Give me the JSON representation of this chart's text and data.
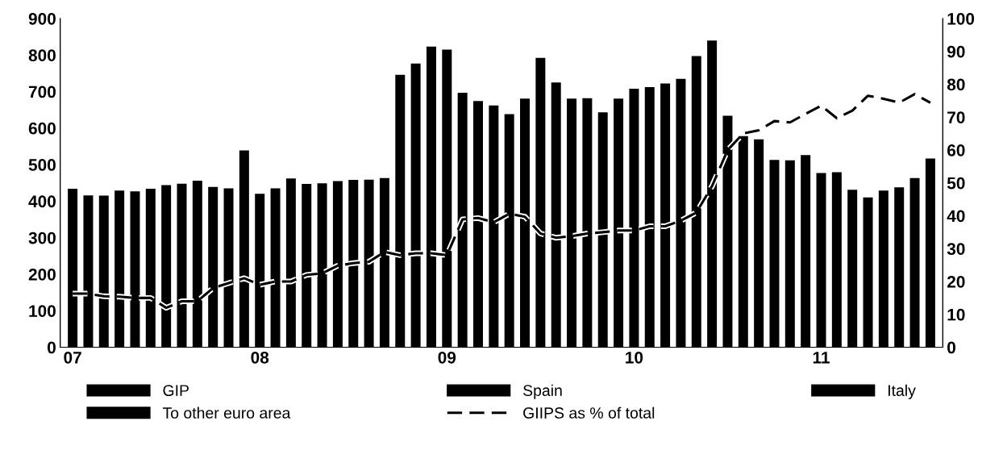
{
  "chart_data": {
    "type": "bar",
    "categories": [
      "07",
      null,
      null,
      null,
      null,
      null,
      null,
      null,
      null,
      null,
      null,
      null,
      "08",
      null,
      null,
      null,
      null,
      null,
      null,
      null,
      null,
      null,
      null,
      null,
      "09",
      null,
      null,
      null,
      null,
      null,
      null,
      null,
      null,
      null,
      null,
      null,
      "10",
      null,
      null,
      null,
      null,
      null,
      null,
      null,
      null,
      null,
      null,
      null,
      "11",
      null,
      null,
      null,
      null,
      null,
      null,
      null
    ],
    "series": [
      {
        "color": "#000000",
        "values": [
          434,
          416,
          415,
          429,
          427,
          434,
          444,
          448,
          456,
          439,
          435,
          539,
          420,
          435,
          462,
          447,
          449,
          455,
          458,
          459,
          463,
          746,
          777,
          823,
          815,
          697,
          674,
          662,
          638,
          681,
          792,
          725,
          681,
          682,
          643,
          681,
          708,
          712,
          722,
          735,
          797,
          840,
          634,
          578,
          569,
          513,
          512,
          526,
          477,
          479,
          431,
          410,
          429,
          438,
          463,
          517
        ]
      },
      {
        "name": "GIP",
        "color": "#000000",
        "values": [
          null,
          null,
          null,
          null,
          null,
          null,
          null,
          null,
          null,
          null,
          null,
          null,
          null,
          null,
          null,
          null,
          null,
          null,
          null,
          null,
          null,
          null,
          null,
          null,
          null,
          null,
          null,
          null,
          null,
          null,
          null,
          null,
          null,
          null,
          null,
          null,
          null,
          null,
          null,
          null,
          null,
          null,
          null,
          null,
          null,
          null,
          null,
          null,
          null,
          null,
          null,
          null,
          null,
          null,
          null,
          null
        ]
      },
      {
        "name": "Spain",
        "color": "#000000",
        "values": [
          null,
          null,
          null,
          null,
          null,
          null,
          null,
          null,
          null,
          null,
          null,
          null,
          null,
          null,
          null,
          null,
          null,
          null,
          null,
          null,
          null,
          null,
          null,
          null,
          null,
          null,
          null,
          null,
          null,
          null,
          null,
          null,
          null,
          null,
          null,
          null,
          null,
          null,
          null,
          null,
          null,
          null,
          null,
          null,
          null,
          null,
          null,
          null,
          null,
          null,
          null,
          null,
          null,
          null,
          null,
          null
        ]
      },
      {
        "name": "Italy",
        "color": "#000000",
        "values": [
          null,
          null,
          null,
          null,
          null,
          null,
          null,
          null,
          null,
          null,
          null,
          null,
          null,
          null,
          null,
          null,
          null,
          null,
          null,
          null,
          null,
          null,
          null,
          null,
          null,
          null,
          null,
          null,
          null,
          null,
          null,
          null,
          null,
          null,
          null,
          null,
          null,
          null,
          null,
          null,
          null,
          null,
          null,
          null,
          null,
          null,
          null,
          null,
          null,
          null,
          null,
          null,
          null,
          null,
          null,
          null
        ]
      },
      {
        "name": "To other euro area",
        "color": "#000000",
        "values": [
          null,
          null,
          null,
          null,
          null,
          null,
          null,
          null,
          null,
          null,
          null,
          null,
          null,
          null,
          null,
          null,
          null,
          null,
          null,
          null,
          null,
          null,
          null,
          null,
          null,
          null,
          null,
          null,
          null,
          null,
          null,
          null,
          null,
          null,
          null,
          null,
          null,
          null,
          null,
          null,
          null,
          null,
          null,
          null,
          null,
          null,
          null,
          null,
          null,
          null,
          null,
          null,
          null,
          null,
          null,
          null
        ]
      },
      {
        "name": "GIIPS as % of total",
        "type": "line",
        "axis": "y2",
        "color": "#000000",
        "line_style": "dashed",
        "values": [
          16.3,
          16.3,
          15.5,
          15.4,
          15,
          15,
          12,
          14,
          14,
          18,
          19.5,
          21,
          19,
          20,
          20,
          22,
          22.5,
          24.8,
          25.6,
          26,
          29,
          28,
          28.6,
          28.6,
          28,
          38.9,
          39.3,
          38,
          40.6,
          39.7,
          34.6,
          33.3,
          33.8,
          34.6,
          35,
          35.5,
          35.5,
          36.8,
          36.8,
          38.5,
          41,
          49,
          60,
          65,
          66,
          68.8,
          68.4,
          71,
          73.5,
          69.7,
          72,
          76.5,
          75.6,
          74.4,
          77,
          74.4
        ]
      }
    ],
    "ylim": [
      0,
      900
    ],
    "yticks": [
      0,
      100,
      200,
      300,
      400,
      500,
      600,
      700,
      800,
      900
    ],
    "y2lim": [
      0,
      100
    ],
    "y2ticks": [
      0,
      10,
      20,
      30,
      40,
      50,
      60,
      70,
      80,
      90,
      100
    ],
    "grid": false,
    "legend": "bottom"
  }
}
